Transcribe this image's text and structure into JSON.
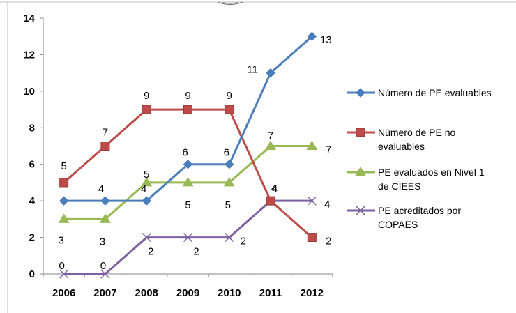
{
  "chart_data": {
    "type": "line",
    "categories": [
      "2006",
      "2007",
      "2008",
      "2009",
      "2010",
      "2011",
      "2012"
    ],
    "ylim": [
      0,
      14
    ],
    "yticks": [
      0,
      2,
      4,
      6,
      8,
      10,
      12,
      14
    ],
    "title": "",
    "xlabel": "",
    "ylabel": "",
    "grid": false,
    "legend_position": "right",
    "series": [
      {
        "name": "Número de PE evaluables",
        "legend_lines": [
          "Número de PE evaluables"
        ],
        "values": [
          4,
          4,
          4,
          6,
          6,
          11,
          13
        ],
        "labels": [
          "",
          "4",
          "4",
          "6",
          "6",
          "11",
          "13"
        ],
        "color": "#4a7ebb",
        "marker": "diamond"
      },
      {
        "name": "Número de PE no evaluables",
        "legend_lines": [
          "Número de PE no",
          "evaluables"
        ],
        "values": [
          5,
          7,
          9,
          9,
          9,
          4,
          2
        ],
        "labels": [
          "5",
          "7",
          "9",
          "9",
          "9",
          "4",
          "2"
        ],
        "color": "#be4b48",
        "marker": "square"
      },
      {
        "name": "PE evaluados en Nivel 1 de CIEES",
        "legend_lines": [
          "PE evaluados en Nivel 1",
          "de CIEES"
        ],
        "values": [
          3,
          3,
          5,
          5,
          5,
          7,
          7
        ],
        "labels": [
          "3",
          "3",
          "5",
          "5",
          "5",
          "7",
          "7"
        ],
        "color": "#98b954",
        "marker": "triangle"
      },
      {
        "name": "PE acreditados por COPAES",
        "legend_lines": [
          "PE acreditados por",
          "COPAES"
        ],
        "values": [
          0,
          0,
          2,
          2,
          2,
          4,
          4
        ],
        "labels": [
          "0",
          "0",
          "2",
          "2",
          "2",
          "4",
          "4"
        ],
        "color": "#7d60a0",
        "marker": "x"
      }
    ]
  }
}
